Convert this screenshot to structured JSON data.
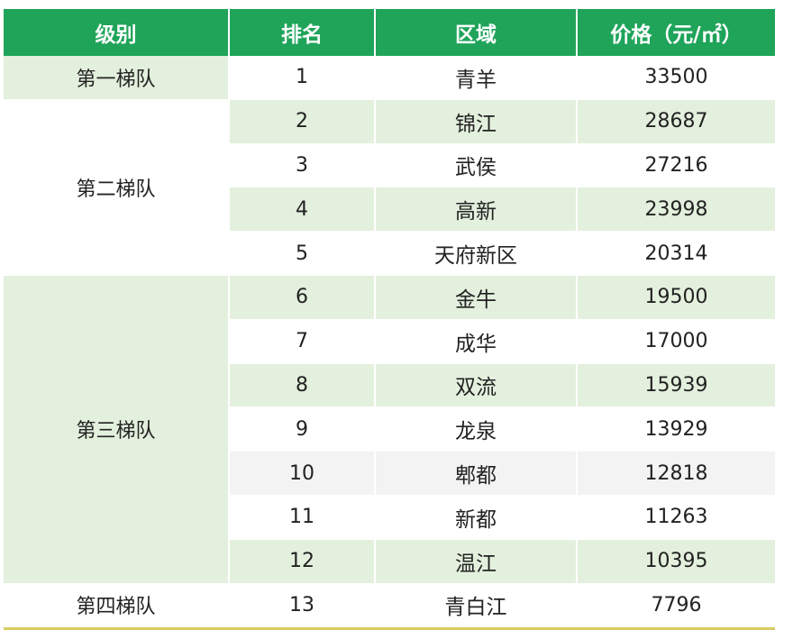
{
  "headers": {
    "tier": "级别",
    "rank": "排名",
    "area": "区域",
    "price": "价格（元/㎡）"
  },
  "tiers": [
    "第一梯队",
    "第二梯队",
    "第三梯队",
    "第四梯队"
  ],
  "rows": [
    {
      "rank": "1",
      "area": "青羊",
      "price": "33500"
    },
    {
      "rank": "2",
      "area": "锦江",
      "price": "28687"
    },
    {
      "rank": "3",
      "area": "武侯",
      "price": "27216"
    },
    {
      "rank": "4",
      "area": "高新",
      "price": "23998"
    },
    {
      "rank": "5",
      "area": "天府新区",
      "price": "20314"
    },
    {
      "rank": "6",
      "area": "金牛",
      "price": "19500"
    },
    {
      "rank": "7",
      "area": "成华",
      "price": "17000"
    },
    {
      "rank": "8",
      "area": "双流",
      "price": "15939"
    },
    {
      "rank": "9",
      "area": "龙泉",
      "price": "13929"
    },
    {
      "rank": "10",
      "area": "郫都",
      "price": "12818"
    },
    {
      "rank": "11",
      "area": "新都",
      "price": "11263"
    },
    {
      "rank": "12",
      "area": "温江",
      "price": "10395"
    },
    {
      "rank": "13",
      "area": "青白江",
      "price": "7796"
    }
  ],
  "colors": {
    "header_bg": "#1fa45a",
    "header_text": "#ffffff",
    "stripe": "#e3f0dd",
    "bottom_rule": "#d8cc64"
  }
}
